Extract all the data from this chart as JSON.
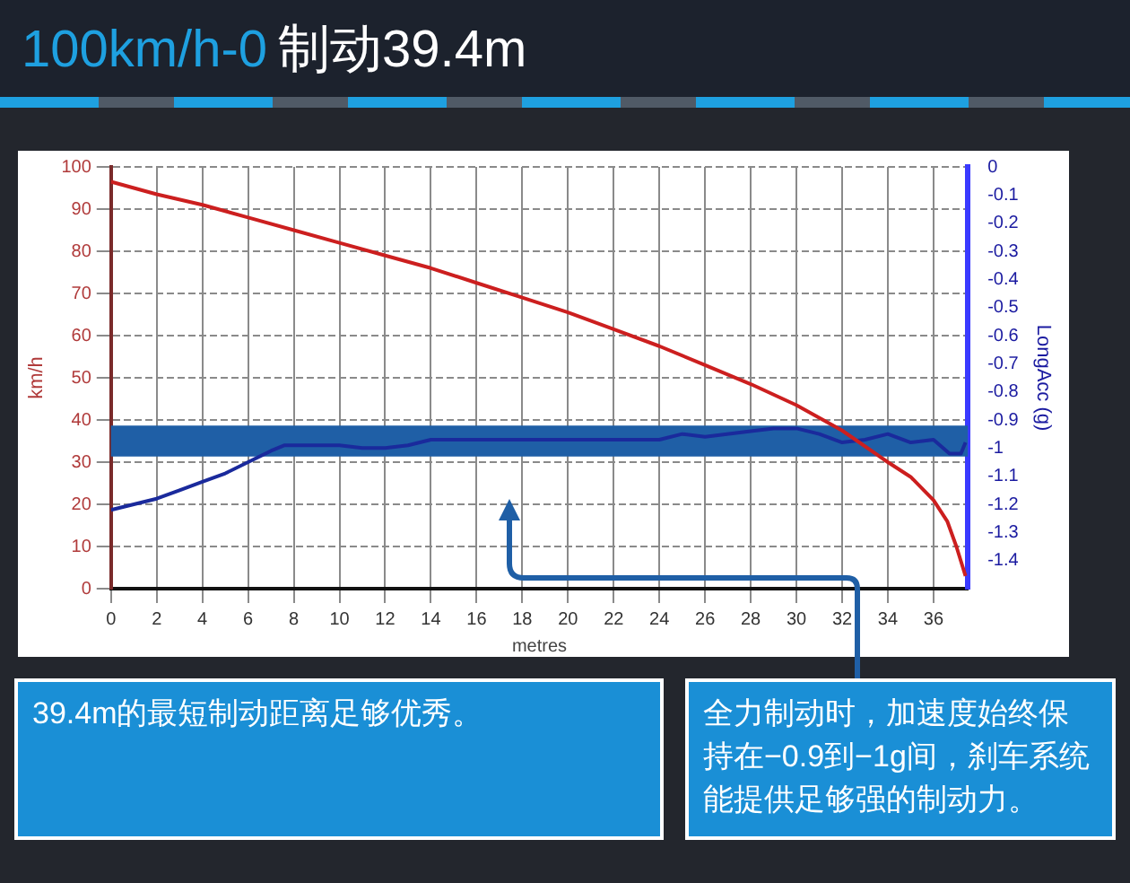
{
  "chart_data": {
    "type": "line",
    "title": "100km/h-0 制动39.4m",
    "xlabel": "metres",
    "ylabel": "km/h",
    "y2label": "LongAcc (g)",
    "xlim": [
      0,
      37.5
    ],
    "xticks": [
      0,
      2,
      4,
      6,
      8,
      10,
      12,
      14,
      16,
      18,
      20,
      22,
      24,
      26,
      28,
      30,
      32,
      34,
      36
    ],
    "ylim": [
      0,
      100
    ],
    "yticks": [
      0,
      10,
      20,
      30,
      40,
      50,
      60,
      70,
      80,
      90,
      100
    ],
    "y2lim": [
      -1.5,
      0
    ],
    "y2ticks": [
      -1.4,
      -1.3,
      -1.2,
      -1.1,
      -1,
      -0.9,
      -0.8,
      -0.7,
      -0.6,
      -0.5,
      -0.4,
      -0.3,
      -0.2,
      -0.1,
      0
    ],
    "grid": true,
    "legend": false,
    "marker": "none",
    "line_style": "solid",
    "series": [
      {
        "color": "#cc1f1f",
        "axis": "y",
        "x": [
          0,
          2,
          4,
          6,
          8,
          10,
          12,
          14,
          16,
          18,
          20,
          22,
          24,
          26,
          28,
          30,
          32,
          34,
          35,
          36,
          36.6,
          37,
          37.4
        ],
        "values": [
          96.5,
          93.5,
          91,
          88,
          85,
          82,
          79,
          76,
          72.5,
          69,
          65.5,
          61.5,
          57.5,
          53,
          48.5,
          43.5,
          37.5,
          30,
          26.5,
          21,
          16,
          10,
          3
        ]
      },
      {
        "color": "#1a2a9c",
        "axis": "y2",
        "x": [
          0,
          2,
          3,
          4,
          5,
          6,
          7,
          7.6,
          10,
          11,
          12,
          13,
          14,
          18,
          24,
          25,
          26,
          28,
          29,
          30,
          31,
          32,
          33,
          34,
          35,
          36,
          36.7,
          37.2,
          37.4
        ],
        "values": [
          -1.22,
          -1.18,
          -1.15,
          -1.12,
          -1.09,
          -1.05,
          -1.01,
          -0.99,
          -0.99,
          -1,
          -1,
          -0.99,
          -0.97,
          -0.97,
          -0.97,
          -0.95,
          -0.96,
          -0.94,
          -0.93,
          -0.93,
          -0.95,
          -0.98,
          -0.97,
          -0.95,
          -0.98,
          -0.97,
          -1.02,
          -1.02,
          -0.98
        ]
      }
    ],
    "bands": [
      {
        "axis": "y2",
        "from": -1.03,
        "to": -0.92,
        "color": "#1f5fa6"
      }
    ],
    "annotations": [
      "39.4m的最短制动距离足够优秀。",
      "全力制动时，加速度始终保持在−0.9到−1g间，刹车系统能提供足够强的制动力。"
    ]
  }
}
